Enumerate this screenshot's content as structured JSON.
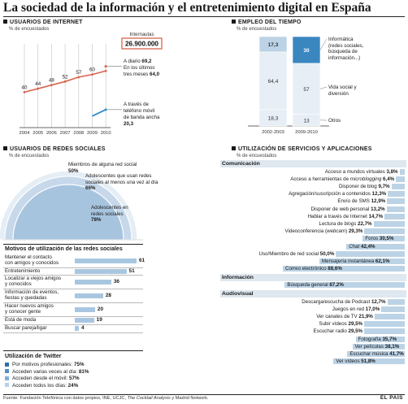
{
  "title": "La sociedad de la información y el entretenimiento digital en España",
  "colors": {
    "accent_red": "#d9654f",
    "accent_blue": "#2e8ccb",
    "light_blue": "#bcd3e6",
    "dark_blue": "#3a87c0",
    "pale": "#e7eef5",
    "grid": "#c9c9c9"
  },
  "internet": {
    "heading": "USUARIOS DE INTERNET",
    "subheading": "% de encuestados",
    "internautas_label": "Internautas",
    "internautas_value": "26.900.000",
    "annot_daily": "A diario",
    "annot_daily_value": "69,2",
    "annot_3m_l1": "En los últimos",
    "annot_3m_l2": "tres meses",
    "annot_3m_value": "64,0",
    "annot_mobile_l1": "A través de",
    "annot_mobile_l2": "teléfono móvil",
    "annot_mobile_l3": "de banda ancha",
    "annot_mobile_value": "20,3",
    "years": [
      "2004",
      "2005",
      "2006",
      "2007",
      "2008",
      "2009",
      "2010"
    ],
    "point_labels": [
      "40",
      "44",
      "48",
      "52",
      "57",
      "60"
    ]
  },
  "empleo": {
    "heading": "EMPLEO DEL TIEMPO",
    "subheading": "% de encuestados",
    "periods": [
      "2002-2003",
      "2009-2010"
    ],
    "value_labels": [
      [
        "17,3",
        "64,4",
        "18,3"
      ],
      [
        "30",
        "57",
        "13"
      ]
    ],
    "legend": [
      {
        "l1": "Informática",
        "l2": "(redes sociales,",
        "l3": "búsqueda de",
        "l4": "información...)"
      },
      {
        "l1": "Vida social y",
        "l2": "diversión"
      },
      {
        "l1": "Otros"
      }
    ]
  },
  "redes": {
    "heading": "USUARIOS DE REDES SOCIALES",
    "subheading": "% de encuestados",
    "ann1_l1": "Miembros de alguna red social",
    "ann1_v": "50%",
    "ann2_l1": "Adolescentes que usan redes",
    "ann2_l2": "sociales al menos una vez al día",
    "ann2_v": "66%",
    "ann3_l1": "Adolescentes en",
    "ann3_l2": "redes sociales",
    "ann3_v": "78%",
    "motivos_title": "Motivos de utilización de las redes sociales",
    "motivos": [
      {
        "l1": "Mantener el contacto",
        "l2": "con amigos y conocidos",
        "value": "61"
      },
      {
        "l1": "Entretenimiento",
        "l2": "",
        "value": "51"
      },
      {
        "l1": "Localizar a viejos amigos",
        "l2": "y conocidos",
        "value": "36"
      },
      {
        "l1": "Información de eventos,",
        "l2": "fiestas y quedadas",
        "value": "28"
      },
      {
        "l1": "Hacer nuevos amigos",
        "l2": "y conocer gente",
        "value": "20"
      },
      {
        "l1": "Está de moda",
        "l2": "",
        "value": "19"
      },
      {
        "l1": "Buscar pareja/ligar",
        "l2": "",
        "value": "4"
      }
    ],
    "twitter_title": "Utilización de Twitter",
    "twitter": [
      {
        "label": "Por motivos profesionales: ",
        "value": "75%"
      },
      {
        "label": "Acceden varias veces al día: ",
        "value": "81%"
      },
      {
        "label": "Acceden desde el móvil: ",
        "value": "57%"
      },
      {
        "label": "Acceden todos los días: ",
        "value": "24%"
      }
    ]
  },
  "servicios": {
    "heading": "UTILIZACIÓN DE SERVICIOS Y APLICACIONES",
    "subheading": "% de encuestados",
    "groups": [
      {
        "name": "Comunicación",
        "items": [
          {
            "label": "Acceso a mundos virtuales ",
            "value": "3,8%"
          },
          {
            "label": "Acceso a herramientas de ",
            "italic": "microblogging",
            "value": " 6,4%"
          },
          {
            "label": "Disponer de blog ",
            "value": "9,7%"
          },
          {
            "label": "Agregación/suscripción a contenidos ",
            "value": "12,3%"
          },
          {
            "label": "Envío de SMS ",
            "value": "12,9%"
          },
          {
            "label": "Disponer de web personal ",
            "value": "13,2%"
          },
          {
            "label": "Hablar a través de Internet ",
            "value": "14,7%"
          },
          {
            "label": "Lectura de ",
            "italic": "blogs",
            "value": " 22,7%"
          },
          {
            "label": "Videoconferencia (",
            "italic": "webcam",
            "label2": ") ",
            "value": "29,3%"
          },
          {
            "label": "Foros ",
            "value": "30,5%"
          },
          {
            "label": "",
            "italic": "Chat",
            "value": " 42,4%"
          },
          {
            "label": "Uso/Miembro de red social ",
            "value": "50,0%"
          },
          {
            "label": "Mensajería instantánea ",
            "value": "62,1%"
          },
          {
            "label": "Correo electrónico ",
            "value": "88,6%"
          }
        ]
      },
      {
        "name": "Información",
        "items": [
          {
            "label": "Búsqueda general ",
            "value": "87,2%"
          }
        ]
      },
      {
        "name": "Audiovisual",
        "items": [
          {
            "label": "Descarga/escucha de Podcast ",
            "value": "12,7%"
          },
          {
            "label": "Juegos en red ",
            "value": "17,0%"
          },
          {
            "label": "Ver canales de TV ",
            "value": "21,9%"
          },
          {
            "label": "Subir vídeos ",
            "value": "29,5%"
          },
          {
            "label": "Escuchar radio ",
            "value": "29,5%"
          },
          {
            "label": "Fotografía ",
            "value": "35,7%"
          },
          {
            "label": "Ver películas ",
            "value": "38,1%"
          },
          {
            "label": "Escuchar música ",
            "value": "41,7%"
          },
          {
            "label": "Ver vídeos ",
            "value": "51,8%"
          }
        ]
      }
    ]
  },
  "footer": {
    "source_pre": "Fuente: Fundación Telefónica con datos propios, INE, UCJC, ",
    "source_italic": "The Cocktail Analysis",
    "source_post": " y Madrid Network.",
    "brand": "EL PAÍS"
  },
  "chart_data": [
    {
      "type": "line",
      "title": "USUARIOS DE INTERNET",
      "ylabel": "% de encuestados",
      "x": [
        "2004",
        "2005",
        "2006",
        "2007",
        "2008",
        "2009",
        "2010"
      ],
      "series": [
        {
          "name": "A diario",
          "values": [
            null,
            null,
            null,
            null,
            null,
            null,
            69.2
          ]
        },
        {
          "name": "En los últimos tres meses",
          "values": [
            40,
            44,
            48,
            52,
            57,
            60,
            64.0
          ]
        },
        {
          "name": "A través de teléfono móvil de banda ancha",
          "values": [
            null,
            null,
            null,
            null,
            null,
            13,
            20.3
          ]
        }
      ],
      "ylim": [
        0,
        100
      ]
    },
    {
      "type": "bar",
      "stacked": true,
      "title": "EMPLEO DEL TIEMPO",
      "ylabel": "% de encuestados",
      "categories": [
        "2002-2003",
        "2009-2010"
      ],
      "series": [
        {
          "name": "Informática",
          "values": [
            17.3,
            30
          ]
        },
        {
          "name": "Vida social y diversión",
          "values": [
            64.4,
            57
          ]
        },
        {
          "name": "Otros",
          "values": [
            18.3,
            13
          ]
        }
      ]
    },
    {
      "type": "bar",
      "title": "Motivos de utilización de las redes sociales",
      "categories": [
        "Mantener el contacto con amigos y conocidos",
        "Entretenimiento",
        "Localizar a viejos amigos y conocidos",
        "Información de eventos, fiestas y quedadas",
        "Hacer nuevos amigos y conocer gente",
        "Está de moda",
        "Buscar pareja/ligar"
      ],
      "values": [
        61,
        51,
        36,
        28,
        20,
        19,
        4
      ]
    },
    {
      "type": "bar",
      "title": "Utilización de Twitter",
      "categories": [
        "Por motivos profesionales",
        "Acceden varias veces al día",
        "Acceden desde el móvil",
        "Acceden todos los días"
      ],
      "values": [
        75,
        81,
        57,
        24
      ]
    },
    {
      "type": "bar",
      "title": "USUARIOS DE REDES SOCIALES",
      "categories": [
        "Miembros de alguna red social",
        "Adolescentes que usan redes sociales al menos una vez al día",
        "Adolescentes en redes sociales"
      ],
      "values": [
        50,
        66,
        78
      ]
    },
    {
      "type": "bar",
      "title": "UTILIZACIÓN DE SERVICIOS Y APLICACIONES",
      "categories": [
        "Acceso a mundos virtuales",
        "Acceso a herramientas de microblogging",
        "Disponer de blog",
        "Agregación/suscripción a contenidos",
        "Envío de SMS",
        "Disponer de web personal",
        "Hablar a través de Internet",
        "Lectura de blogs",
        "Videoconferencia (webcam)",
        "Foros",
        "Chat",
        "Uso/Miembro de red social",
        "Mensajería instantánea",
        "Correo electrónico",
        "Búsqueda general",
        "Descarga/escucha de Podcast",
        "Juegos en red",
        "Ver canales de TV",
        "Subir vídeos",
        "Escuchar radio",
        "Fotografía",
        "Ver películas",
        "Escuchar música",
        "Ver vídeos"
      ],
      "values": [
        3.8,
        6.4,
        9.7,
        12.3,
        12.9,
        13.2,
        14.7,
        22.7,
        29.3,
        30.5,
        42.4,
        50.0,
        62.1,
        88.6,
        87.2,
        12.7,
        17.0,
        21.9,
        29.5,
        29.5,
        35.7,
        38.1,
        41.7,
        51.8
      ]
    }
  ]
}
